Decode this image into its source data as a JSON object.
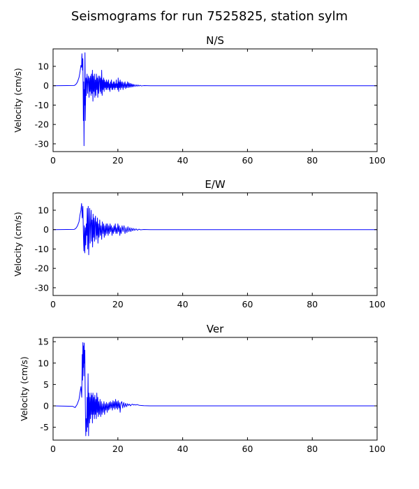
{
  "suptitle": "Seismograms for run 7525825, station sylm",
  "chart_data": [
    {
      "type": "line",
      "title": "N/S",
      "ylabel": "Velocity (cm/s)",
      "xlim": [
        0,
        100
      ],
      "ylim": [
        -34,
        19
      ],
      "xticks": [
        0,
        20,
        40,
        60,
        80,
        100
      ],
      "yticks": [
        -30,
        -20,
        -10,
        0,
        10
      ],
      "series": [
        {
          "color": "#0000ff",
          "x": [
            0,
            6.5,
            7.0,
            7.5,
            8.0,
            8.3,
            8.6,
            8.8,
            8.9,
            9.1,
            9.2,
            9.35,
            9.45,
            9.55,
            9.65,
            9.75,
            9.85,
            9.95,
            10.05,
            10.15,
            10.25,
            10.35,
            10.5,
            10.65,
            10.8,
            10.95,
            11.1,
            11.25,
            11.4,
            11.55,
            11.7,
            11.85,
            12.0,
            12.15,
            12.3,
            12.45,
            12.6,
            12.75,
            12.9,
            13.05,
            13.2,
            13.35,
            13.5,
            13.65,
            13.8,
            13.95,
            14.1,
            14.25,
            14.4,
            14.55,
            14.7,
            14.85,
            15.0,
            15.15,
            15.3,
            15.45,
            15.6,
            15.75,
            15.9,
            16.05,
            16.2,
            16.35,
            16.5,
            16.65,
            16.8,
            16.95,
            17.1,
            17.25,
            17.4,
            17.55,
            17.7,
            17.85,
            18.0,
            18.15,
            18.3,
            18.45,
            18.6,
            18.75,
            18.9,
            19.05,
            19.2,
            19.35,
            19.5,
            19.65,
            19.8,
            19.95,
            20.1,
            20.25,
            20.4,
            20.55,
            20.7,
            20.85,
            21.0,
            21.2,
            21.4,
            21.6,
            21.8,
            22.0,
            22.2,
            22.4,
            22.6,
            22.8,
            23.0,
            23.2,
            23.4,
            23.6,
            23.8,
            24.0,
            24.2,
            24.4,
            24.6,
            24.8,
            25.0,
            25.3,
            25.6,
            25.9,
            26.2,
            26.5,
            26.8,
            27.2,
            28,
            30,
            100
          ],
          "values": [
            0,
            0.1,
            0.6,
            1.8,
            4.2,
            7.0,
            10.5,
            9.5,
            16.5,
            8.0,
            14.0,
            -18.0,
            2.0,
            -31.0,
            -2.0,
            -10.0,
            17.0,
            -18.0,
            -6.0,
            4.0,
            -5.0,
            2.0,
            6.0,
            -4.0,
            3.0,
            5.0,
            -6.0,
            4.0,
            -3.0,
            5.0,
            -5.0,
            6.0,
            -4.0,
            8.0,
            -8.0,
            5.0,
            -3.0,
            6.0,
            -6.0,
            3.0,
            -5.0,
            6.0,
            -2.0,
            4.0,
            -6.0,
            5.0,
            -4.0,
            3.0,
            5.0,
            -3.0,
            4.0,
            -4.0,
            8.0,
            -5.0,
            3.0,
            -2.0,
            4.0,
            -3.0,
            3.0,
            -1.0,
            2.0,
            -2.0,
            3.0,
            -2.0,
            2.0,
            -1.0,
            3.0,
            -2.0,
            1.0,
            -3.0,
            2.0,
            -1.0,
            3.0,
            -2.0,
            1.0,
            -2.0,
            2.0,
            -1.0,
            2.0,
            -2.0,
            1.0,
            -1.0,
            3.0,
            -1.0,
            1.0,
            -2.0,
            4.0,
            -3.0,
            2.0,
            -1.0,
            3.0,
            -2.0,
            2.0,
            -1.0,
            2.0,
            -2.0,
            1.5,
            -1.0,
            2.0,
            -1.5,
            1.0,
            -1.0,
            2.0,
            -1.0,
            1.5,
            -0.8,
            1.2,
            -0.8,
            1.0,
            -0.6,
            0.8,
            -0.5,
            0.6,
            -0.4,
            0.5,
            -0.3,
            0.4,
            -0.2,
            0.2,
            -0.1,
            0.05,
            0,
            0
          ]
        }
      ]
    },
    {
      "type": "line",
      "title": "E/W",
      "ylabel": "Velocity (cm/s)",
      "xlim": [
        0,
        100
      ],
      "ylim": [
        -34,
        19
      ],
      "xticks": [
        0,
        20,
        40,
        60,
        80,
        100
      ],
      "yticks": [
        -30,
        -20,
        -10,
        0,
        10
      ],
      "series": [
        {
          "color": "#0000ff",
          "x": [
            0,
            6.5,
            7.0,
            7.5,
            8.0,
            8.3,
            8.6,
            8.8,
            9.0,
            9.2,
            9.35,
            9.5,
            9.65,
            9.8,
            9.95,
            10.1,
            10.25,
            10.4,
            10.55,
            10.7,
            10.85,
            11.0,
            11.15,
            11.3,
            11.45,
            11.6,
            11.75,
            11.9,
            12.05,
            12.2,
            12.35,
            12.5,
            12.65,
            12.8,
            12.95,
            13.1,
            13.25,
            13.4,
            13.55,
            13.7,
            13.85,
            14.0,
            14.2,
            14.4,
            14.6,
            14.8,
            15.0,
            15.2,
            15.4,
            15.6,
            15.8,
            16.0,
            16.2,
            16.4,
            16.6,
            16.8,
            17.0,
            17.2,
            17.4,
            17.6,
            17.8,
            18.0,
            18.2,
            18.4,
            18.6,
            18.8,
            19.0,
            19.2,
            19.4,
            19.6,
            19.8,
            20.0,
            20.2,
            20.4,
            20.6,
            20.8,
            21.0,
            21.3,
            21.6,
            21.9,
            22.2,
            22.5,
            22.8,
            23.1,
            23.4,
            23.7,
            24.0,
            24.3,
            24.6,
            24.9,
            25.2,
            25.6,
            26.0,
            26.5,
            27.0,
            28,
            30,
            100
          ],
          "values": [
            0,
            0.1,
            0.6,
            1.8,
            4.0,
            7.5,
            10.0,
            13.5,
            6.0,
            12.0,
            -2.0,
            -11.0,
            2.0,
            -12.0,
            1.0,
            -8.0,
            3.0,
            -3.0,
            11.0,
            -10.0,
            12.0,
            -13.0,
            2.0,
            11.0,
            -7.0,
            3.0,
            10.0,
            -6.0,
            5.0,
            -9.0,
            8.0,
            -4.0,
            6.0,
            -6.0,
            4.0,
            7.0,
            -5.0,
            4.0,
            -3.0,
            6.0,
            -7.0,
            3.0,
            -4.0,
            5.0,
            -3.0,
            2.0,
            -5.0,
            4.0,
            -2.0,
            3.0,
            -4.0,
            2.0,
            -3.0,
            3.0,
            -2.0,
            3.0,
            -3.0,
            2.0,
            -2.0,
            3.0,
            -1.0,
            2.0,
            -3.0,
            1.0,
            -2.0,
            2.0,
            -1.0,
            3.0,
            -2.0,
            1.0,
            -2.0,
            3.0,
            -1.0,
            2.0,
            -3.0,
            1.0,
            -2.0,
            2.0,
            -1.0,
            2.0,
            -2.0,
            1.0,
            -1.5,
            1.5,
            -1.0,
            1.0,
            -1.0,
            0.8,
            -0.6,
            0.6,
            -0.4,
            0.4,
            -0.3,
            0.2,
            -0.1,
            0.05,
            0,
            0
          ]
        }
      ]
    },
    {
      "type": "line",
      "title": "Ver",
      "ylabel": "Velocity (cm/s)",
      "xlim": [
        0,
        100
      ],
      "ylim": [
        -8,
        16
      ],
      "xticks": [
        0,
        20,
        40,
        60,
        80,
        100
      ],
      "yticks": [
        -5,
        0,
        5,
        10,
        15
      ],
      "series": [
        {
          "color": "#0000ff",
          "x": [
            0,
            6.0,
            6.8,
            7.4,
            8.0,
            8.3,
            8.6,
            8.85,
            9.0,
            9.1,
            9.2,
            9.3,
            9.4,
            9.5,
            9.6,
            9.7,
            9.8,
            9.9,
            10.0,
            10.1,
            10.2,
            10.35,
            10.5,
            10.65,
            10.8,
            10.95,
            11.1,
            11.25,
            11.4,
            11.55,
            11.7,
            11.85,
            12.0,
            12.15,
            12.3,
            12.45,
            12.6,
            12.75,
            12.9,
            13.05,
            13.2,
            13.35,
            13.5,
            13.65,
            13.8,
            13.95,
            14.1,
            14.3,
            14.5,
            14.7,
            14.9,
            15.1,
            15.3,
            15.5,
            15.7,
            15.9,
            16.1,
            16.3,
            16.5,
            16.7,
            16.9,
            17.1,
            17.3,
            17.5,
            17.7,
            17.9,
            18.1,
            18.3,
            18.5,
            18.7,
            18.9,
            19.1,
            19.3,
            19.5,
            19.7,
            19.9,
            20.1,
            20.3,
            20.5,
            20.7,
            20.9,
            21.2,
            21.5,
            21.8,
            22.1,
            22.4,
            22.7,
            23.0,
            23.3,
            23.6,
            23.9,
            24.2,
            24.5,
            24.8,
            25.1,
            25.5,
            26.0,
            26.5,
            27.0,
            28,
            30,
            100
          ],
          "values": [
            0,
            -0.1,
            -0.4,
            0.3,
            1.5,
            3.0,
            4.5,
            2.0,
            12.0,
            6.0,
            14.8,
            9.0,
            14.0,
            7.0,
            14.7,
            10.0,
            13.0,
            4.0,
            -2.0,
            -7.0,
            -3.0,
            -6.0,
            2.0,
            -5.0,
            7.5,
            -7.0,
            3.0,
            -4.0,
            2.0,
            -3.0,
            3.0,
            -2.0,
            2.5,
            -4.0,
            3.0,
            -2.0,
            2.0,
            -3.0,
            2.5,
            -2.0,
            1.5,
            -3.0,
            3.0,
            -1.5,
            2.0,
            -2.5,
            1.0,
            -2.0,
            1.5,
            -2.5,
            1.0,
            -2.0,
            0.5,
            -1.5,
            1.0,
            -2.0,
            0.5,
            -1.0,
            0.8,
            -1.5,
            0.5,
            -1.0,
            0.8,
            -0.8,
            1.0,
            -0.5,
            0.8,
            -1.0,
            1.2,
            -0.5,
            1.0,
            -0.8,
            1.5,
            -0.5,
            1.0,
            -0.8,
            1.2,
            -0.5,
            0.8,
            -1.5,
            0.5,
            1.0,
            -0.5,
            0.8,
            -0.3,
            0.6,
            -0.2,
            0.5,
            0.1,
            0.4,
            0.0,
            0.3,
            0.4,
            0.2,
            0.3,
            0.2,
            0.3,
            0.15,
            0.1,
            0.05,
            0,
            0
          ]
        }
      ]
    }
  ]
}
